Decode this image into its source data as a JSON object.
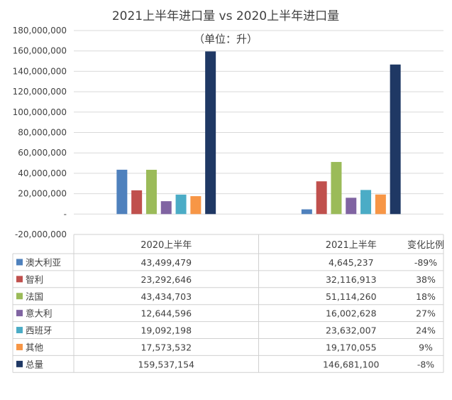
{
  "chart_data": {
    "type": "bar",
    "title": "2021上半年进口量 vs 2020上半年进口量",
    "subtitle": "（单位：升）",
    "categories": [
      "2020上半年",
      "2021上半年"
    ],
    "ylim": [
      -20000000,
      180000000
    ],
    "yticks": [
      "-20,000,000",
      "-",
      "20,000,000",
      "40,000,000",
      "60,000,000",
      "80,000,000",
      "100,000,000",
      "120,000,000",
      "140,000,000",
      "160,000,000",
      "180,000,000"
    ],
    "grid": true,
    "legend": "table",
    "change_header": "变化比例",
    "series": [
      {
        "name": "澳大利亚",
        "color": "#4f81bd",
        "values": [
          43499479,
          4645237
        ],
        "labels": [
          "43,499,479",
          "4,645,237"
        ],
        "change": "-89%"
      },
      {
        "name": "智利",
        "color": "#c0504d",
        "values": [
          23292646,
          32116913
        ],
        "labels": [
          "23,292,646",
          "32,116,913"
        ],
        "change": "38%"
      },
      {
        "name": "法国",
        "color": "#9bbb59",
        "values": [
          43434703,
          51114260
        ],
        "labels": [
          "43,434,703",
          "51,114,260"
        ],
        "change": "18%"
      },
      {
        "name": "意大利",
        "color": "#8064a2",
        "values": [
          12644596,
          16002628
        ],
        "labels": [
          "12,644,596",
          "16,002,628"
        ],
        "change": "27%"
      },
      {
        "name": "西班牙",
        "color": "#4bacc6",
        "values": [
          19092198,
          23632007
        ],
        "labels": [
          "19,092,198",
          "23,632,007"
        ],
        "change": "24%"
      },
      {
        "name": "其他",
        "color": "#f79646",
        "values": [
          17573532,
          19170055
        ],
        "labels": [
          "17,573,532",
          "19,170,055"
        ],
        "change": "9%"
      },
      {
        "name": "总量",
        "color": "#1f3864",
        "values": [
          159537154,
          146681100
        ],
        "labels": [
          "159,537,154",
          "146,681,100"
        ],
        "change": "-8%"
      }
    ]
  }
}
